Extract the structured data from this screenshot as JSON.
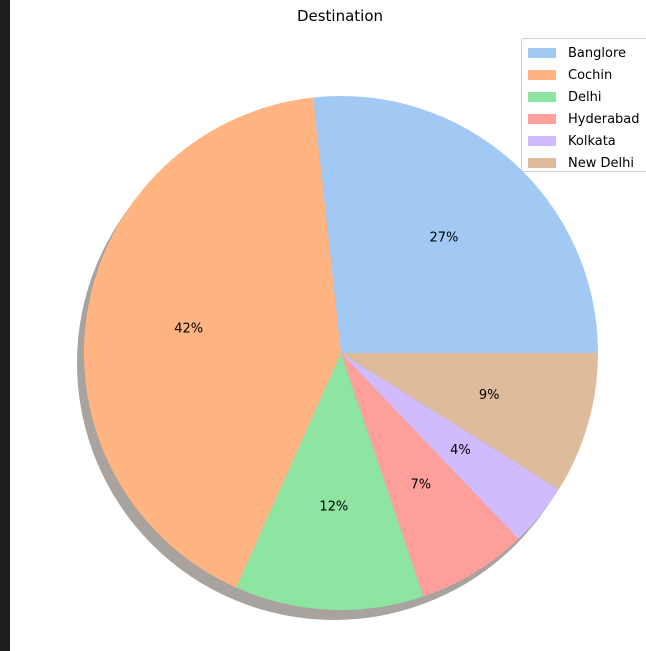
{
  "chart_data": {
    "type": "pie",
    "title": "Destination",
    "categories": [
      "Banglore",
      "Cochin",
      "Delhi",
      "Hyderabad",
      "Kolkata",
      "New Delhi"
    ],
    "values": [
      27,
      42,
      12,
      7,
      4,
      9
    ],
    "labels": [
      "27%",
      "42%",
      "12%",
      "7%",
      "4%",
      "9%"
    ],
    "colors": [
      "#a1c9f4",
      "#ffb482",
      "#8de5a1",
      "#ff9f9b",
      "#d0bbff",
      "#debb9b"
    ],
    "shadow": true,
    "legend": "upper right",
    "start_angle_deg": 0,
    "direction": "counterclockwise"
  }
}
